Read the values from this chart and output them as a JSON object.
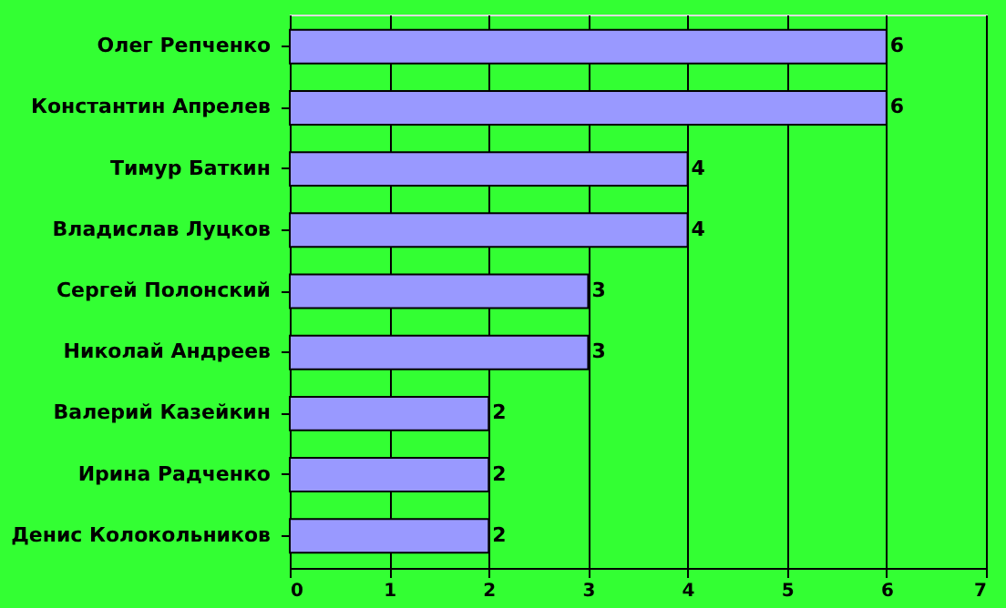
{
  "chart_data": {
    "type": "bar",
    "orientation": "horizontal",
    "categories": [
      "Олег Репченко",
      "Константин Апрелев",
      "Тимур Баткин",
      "Владислав Луцков",
      "Сергей Полонский",
      "Николай Андреев",
      "Валерий Казейкин",
      "Ирина Радченко",
      "Денис Колокольников"
    ],
    "values": [
      6,
      6,
      4,
      4,
      3,
      3,
      2,
      2,
      2
    ],
    "color": "#9999ff",
    "xlim": [
      0,
      7
    ],
    "xticks": [
      0,
      1,
      2,
      3,
      4,
      5,
      6,
      7
    ],
    "grid": "x",
    "data_labels": true
  }
}
